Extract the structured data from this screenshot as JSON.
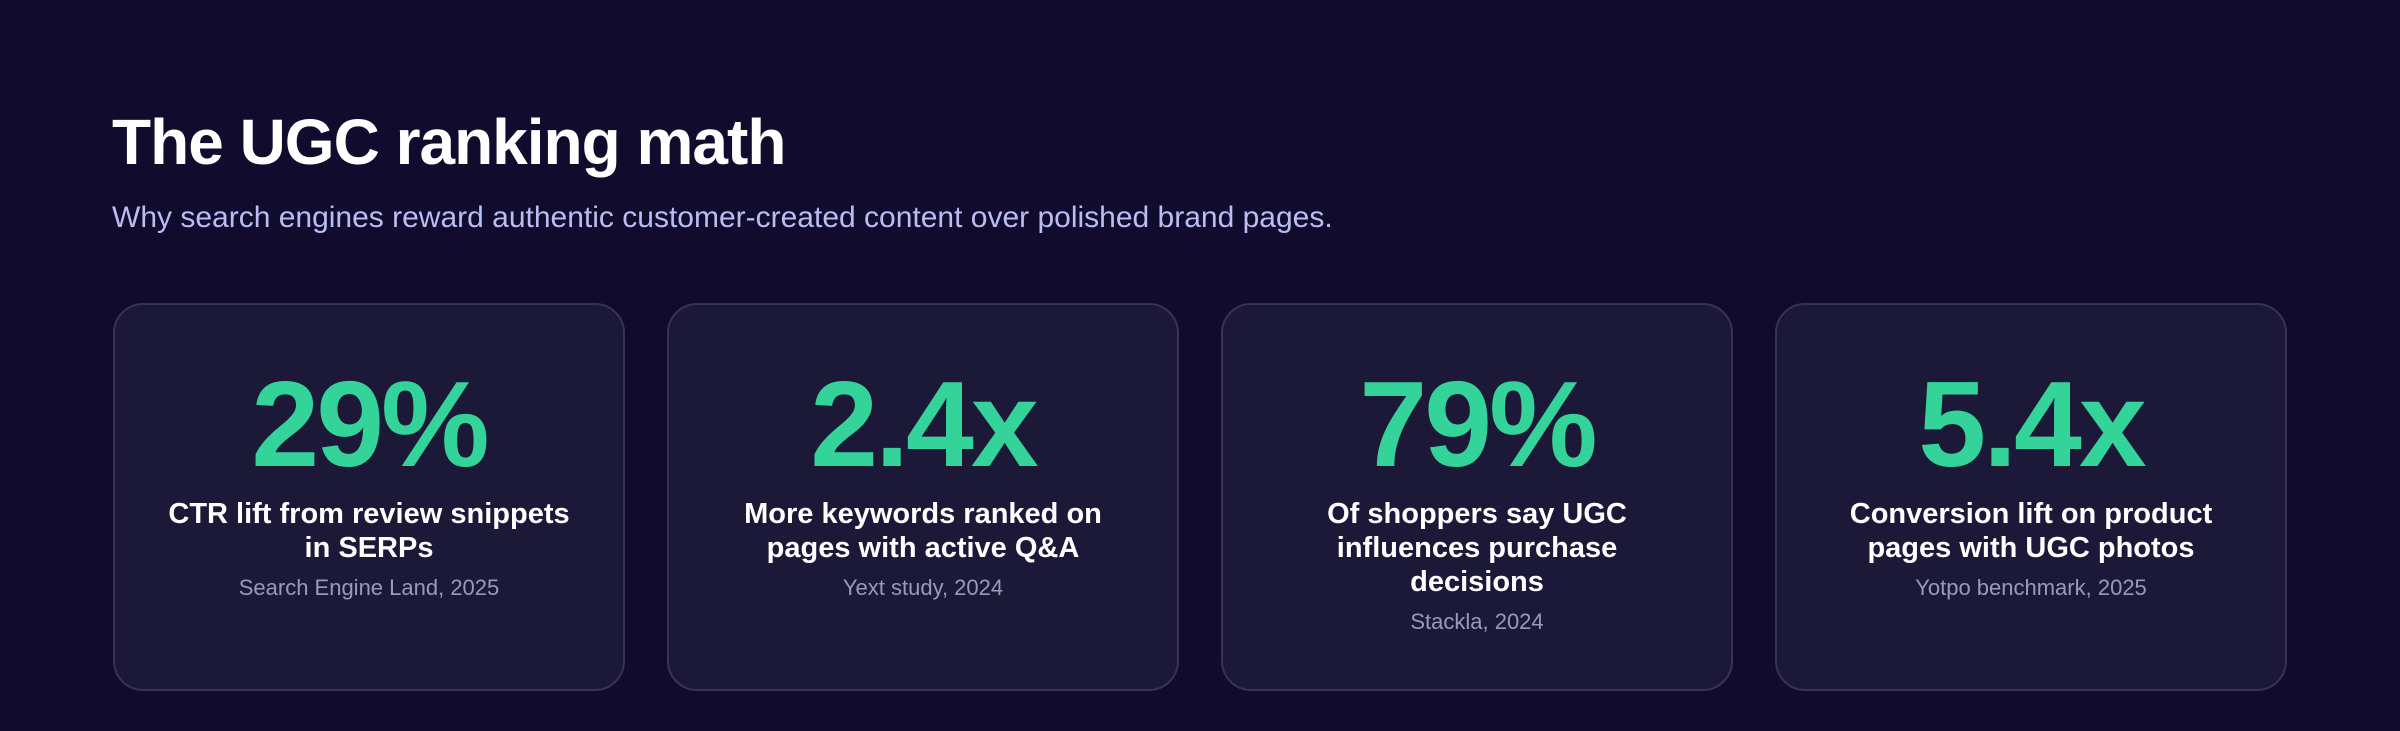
{
  "header": {
    "title": "The UGC ranking math",
    "subtitle": "Why search engines reward authentic customer-created content over polished brand pages."
  },
  "cards": [
    {
      "value": "29%",
      "label": "CTR lift from review snippets in SERPs",
      "source": "Search Engine Land, 2025"
    },
    {
      "value": "2.4x",
      "label": "More keywords ranked on pages with active Q&A",
      "source": "Yext study, 2024"
    },
    {
      "value": "79%",
      "label": "Of shoppers say UGC influences purchase decisions",
      "source": "Stackla, 2024"
    },
    {
      "value": "5.4x",
      "label": "Conversion lift on product pages with UGC photos",
      "source": "Yotpo benchmark, 2025"
    }
  ]
}
